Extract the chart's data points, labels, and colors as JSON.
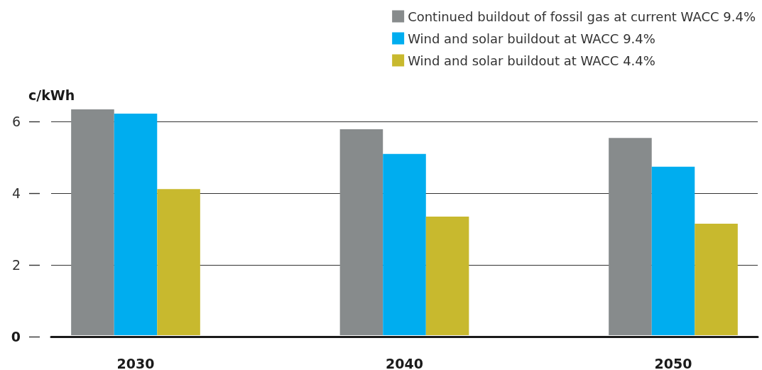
{
  "chart_data": {
    "type": "bar",
    "ylabel": "c/kWh",
    "categories": [
      "2030",
      "2040",
      "2050"
    ],
    "series": [
      {
        "name": "Continued buildout of fossil gas at current WACC 9.4%",
        "color": "#878b8c",
        "values": [
          6.34,
          5.78,
          5.54
        ]
      },
      {
        "name": "Wind and solar buildout at WACC 9.4%",
        "color": "#00adef",
        "values": [
          6.22,
          5.09,
          4.73
        ]
      },
      {
        "name": "Wind and solar buildout at WACC 4.4%",
        "color": "#c8b92e",
        "values": [
          4.1,
          3.33,
          3.13
        ]
      }
    ],
    "ylim": [
      0,
      6.34
    ],
    "yticks": [
      0,
      2,
      4,
      6
    ],
    "grid": "y",
    "legend": "top right"
  }
}
